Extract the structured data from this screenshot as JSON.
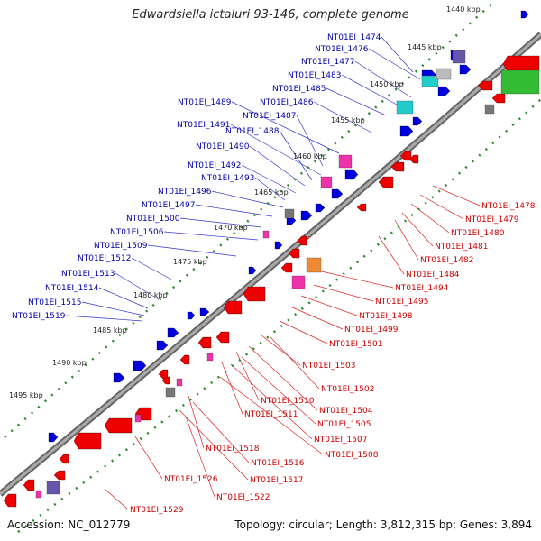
{
  "title": "Edwardsiella ictaluri 93-146, complete genome",
  "footer": {
    "accession": "Accession: NC_012779",
    "summary": "Topology: circular; Length: 3,812,315 bp; Genes: 3,894"
  },
  "kbp_ticks": [
    "1440 kbp",
    "1445 kbp",
    "1450 kbp",
    "1455 kbp",
    "1460 kbp",
    "1465 kbp",
    "1470 kbp",
    "1475 kbp",
    "1480 kbp",
    "1485 kbp",
    "1490 kbp",
    "1495 kbp"
  ],
  "genes_upper": [
    "NT01EI_1474",
    "NT01EI_1476",
    "NT01EI_1477",
    "NT01EI_1483",
    "NT01EI_1485",
    "NT01EI_1486",
    "NT01EI_1489",
    "NT01EI_1487",
    "NT01EI_1491",
    "NT01EI_1488",
    "NT01EI_1490",
    "NT01EI_1492",
    "NT01EI_1493",
    "NT01EI_1496",
    "NT01EI_1497",
    "NT01EI_1500",
    "NT01EI_1506",
    "NT01EI_1509",
    "NT01EI_1512",
    "NT01EI_1513",
    "NT01EI_1514",
    "NT01EI_1515",
    "NT01EI_1519"
  ],
  "genes_lower": [
    "NT01EI_1478",
    "NT01EI_1479",
    "NT01EI_1480",
    "NT01EI_1481",
    "NT01EI_1482",
    "NT01EI_1484",
    "NT01EI_1494",
    "NT01EI_1495",
    "NT01EI_1498",
    "NT01EI_1499",
    "NT01EI_1501",
    "NT01EI_1503",
    "NT01EI_1502",
    "NT01EI_1510",
    "NT01EI_1504",
    "NT01EI_1511",
    "NT01EI_1505",
    "NT01EI_1507",
    "NT01EI_1508",
    "NT01EI_1518",
    "NT01EI_1516",
    "NT01EI_1517",
    "NT01EI_1526",
    "NT01EI_1522",
    "NT01EI_1529"
  ],
  "colors": {
    "backbone": "#888888",
    "forward_gene": "#0000dd",
    "reverse_gene": "#ee0000",
    "upper_label": "#0000aa",
    "lower_label": "#cc0000",
    "tick_dots": "#2a8a2a",
    "rna_cyan": "#22cccc",
    "rna_magenta": "#ee33aa",
    "pseudo_gray": "#777777",
    "purple_block": "#6655aa",
    "green_block": "#33bb33",
    "orange_block": "#ee8833"
  }
}
